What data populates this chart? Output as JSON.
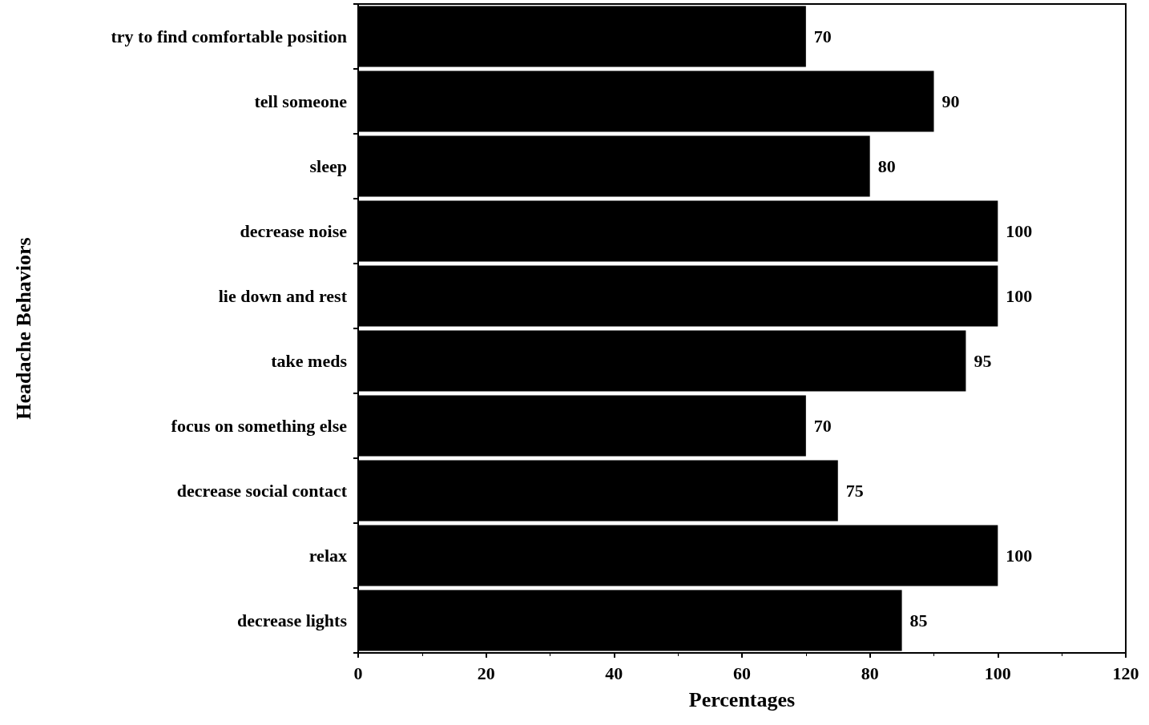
{
  "chart_data": {
    "type": "bar",
    "orientation": "horizontal",
    "xlabel": "Percentages",
    "ylabel": "Headache Behaviors",
    "categories": [
      "try to find comfortable position",
      "tell someone",
      "sleep",
      "decrease noise",
      "lie down and rest",
      "take meds",
      "focus on something else",
      "decrease social contact",
      "relax",
      "decrease lights"
    ],
    "values": [
      70,
      90,
      80,
      100,
      100,
      95,
      70,
      75,
      100,
      85
    ],
    "color": "#000000",
    "data_labels": true,
    "xlim": [
      0,
      120
    ],
    "xticks": [
      0,
      20,
      40,
      60,
      80,
      100,
      120
    ],
    "grid": false
  }
}
